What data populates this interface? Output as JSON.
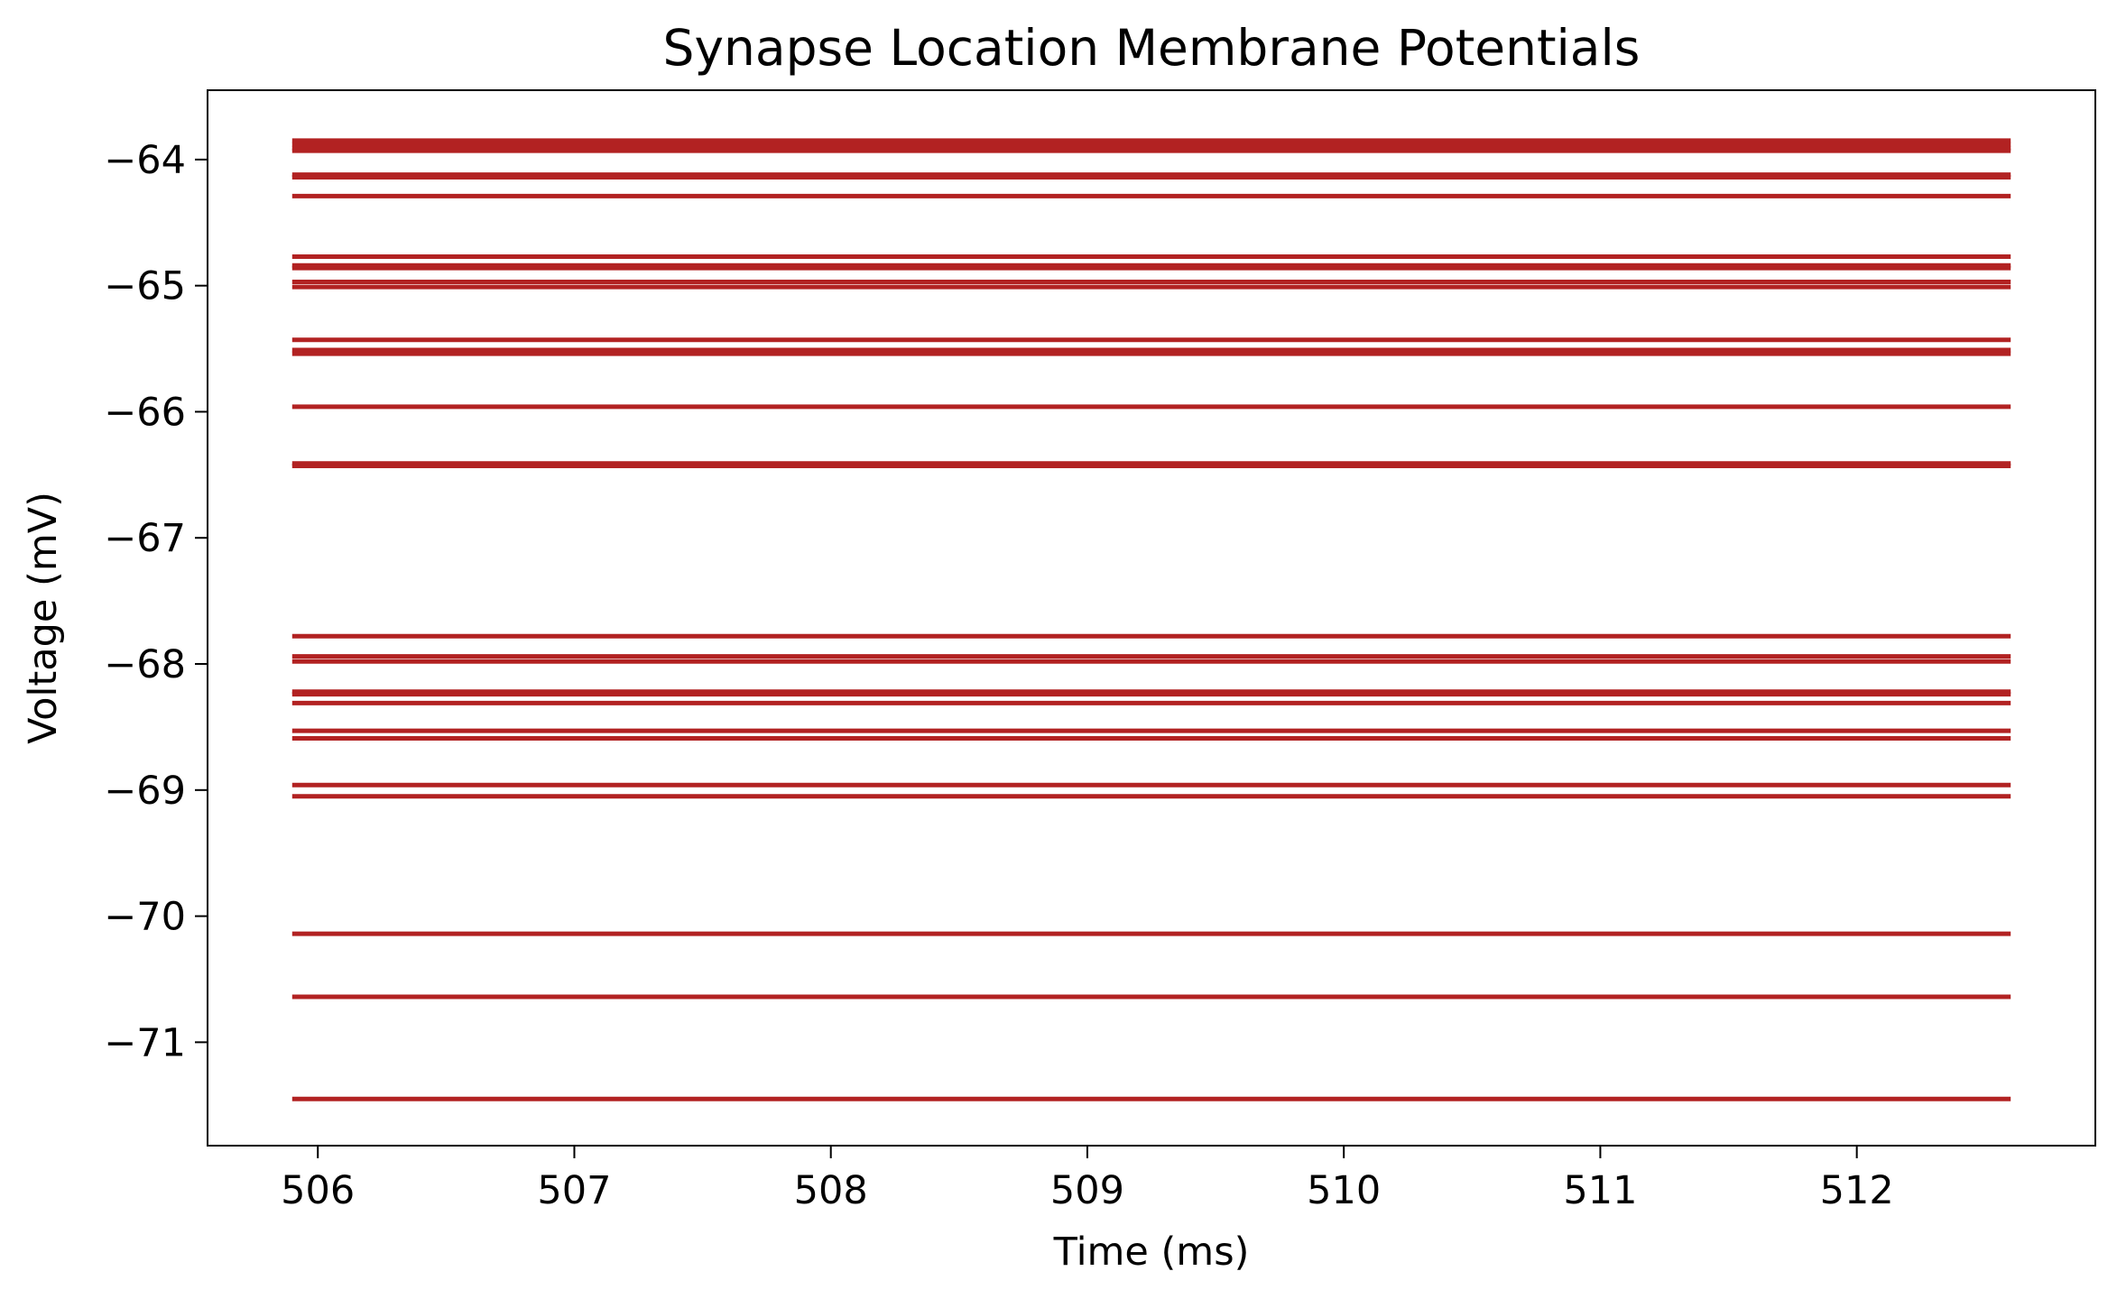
{
  "chart_data": {
    "type": "line",
    "title": "Synapse Location Membrane Potentials",
    "xlabel": "Time (ms)",
    "ylabel": "Voltage (mV)",
    "xlim": [
      505.57,
      512.93
    ],
    "ylim": [
      -71.82,
      -63.45
    ],
    "xticks": [
      506,
      507,
      508,
      509,
      510,
      511,
      512
    ],
    "yticks": [
      -64,
      -65,
      -66,
      -67,
      -68,
      -69,
      -70,
      -71
    ],
    "x_range": [
      505.9,
      512.6
    ],
    "grid": false,
    "legend": "none",
    "color": "#b22222",
    "trace_values_mV": [
      -63.85,
      -63.88,
      -63.91,
      -63.93,
      -64.12,
      -64.14,
      -64.29,
      -64.77,
      -64.84,
      -64.86,
      -64.97,
      -65.01,
      -65.43,
      -65.51,
      -65.54,
      -65.96,
      -66.41,
      -66.43,
      -67.78,
      -67.94,
      -67.98,
      -68.22,
      -68.24,
      -68.31,
      -68.53,
      -68.59,
      -68.96,
      -69.05,
      -70.14,
      -70.64,
      -71.45
    ]
  }
}
